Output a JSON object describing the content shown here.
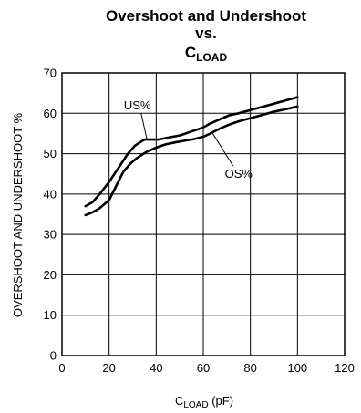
{
  "chart_data": {
    "type": "line",
    "title_line1": "Overshoot and Undershoot",
    "title_line2": "vs.",
    "title_line3_main": "C",
    "title_line3_sub": "LOAD",
    "xlabel_main": "C",
    "xlabel_sub": "LOAD",
    "xlabel_unit": " (pF)",
    "ylabel": "OVERSHOOT AND UNDERSHOOT %",
    "xlim": [
      0,
      120
    ],
    "ylim": [
      0,
      70
    ],
    "x_ticks": [
      "0",
      "20",
      "40",
      "60",
      "80",
      "100",
      "120"
    ],
    "y_ticks": [
      "0",
      "10",
      "20",
      "30",
      "40",
      "50",
      "60",
      "70"
    ],
    "grid": true,
    "series": [
      {
        "name": "US%",
        "x": [
          10,
          13,
          16,
          20,
          24,
          28,
          31,
          35,
          38,
          41,
          45,
          50,
          55,
          60,
          63,
          67,
          71,
          75,
          80,
          85,
          90,
          95,
          100
        ],
        "y": [
          37,
          38,
          40,
          43,
          46.5,
          50,
          52,
          53.5,
          53.5,
          53.5,
          54,
          54.5,
          55.5,
          56.5,
          57.5,
          58.5,
          59.5,
          60,
          60.8,
          61.6,
          62.4,
          63.2,
          64
        ]
      },
      {
        "name": "OS%",
        "x": [
          10,
          13,
          16,
          20,
          23,
          26,
          29,
          32,
          36,
          40,
          44,
          48,
          52,
          56,
          60,
          63,
          67,
          71,
          75,
          80,
          85,
          90,
          95,
          100
        ],
        "y": [
          34.8,
          35.5,
          36.5,
          38.5,
          42,
          45.5,
          47.5,
          49,
          50.5,
          51.5,
          52.3,
          52.8,
          53.2,
          53.6,
          54.2,
          55,
          56.2,
          57.2,
          58,
          58.8,
          59.6,
          60.4,
          61,
          61.7
        ]
      }
    ],
    "annotations": [
      {
        "text": "US%",
        "x": 32,
        "y": 61,
        "target_x": 36,
        "target_y": 53.7
      },
      {
        "text": "OS%",
        "x": 75,
        "y": 44,
        "target_x": 64,
        "target_y": 55
      }
    ]
  }
}
